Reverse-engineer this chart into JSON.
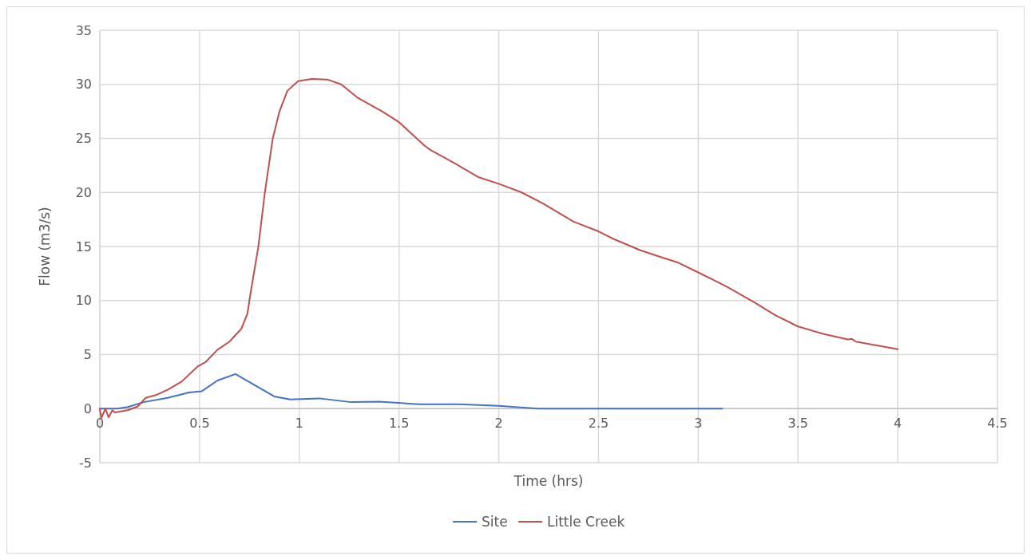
{
  "chart_data": {
    "type": "line",
    "xlabel": "Time (hrs)",
    "ylabel": "Flow (m3/s)",
    "xlim": [
      0,
      4.5
    ],
    "xticks": [
      0,
      0.5,
      1,
      1.5,
      2,
      2.5,
      3,
      3.5,
      4,
      4.5
    ],
    "ylim": [
      -5,
      35
    ],
    "yticks": [
      -5,
      0,
      5,
      10,
      15,
      20,
      25,
      30,
      35
    ],
    "grid": true,
    "legend": "bottom",
    "marker": "none",
    "line_style": "solid",
    "series": [
      {
        "name": "Site",
        "color": "#4472c4",
        "x": [
          0,
          0.087,
          0.14,
          0.22,
          0.34,
          0.447,
          0.51,
          0.59,
          0.68,
          0.77,
          0.874,
          0.954,
          1.1,
          1.26,
          1.4,
          1.6,
          1.8,
          2.0,
          2.2,
          2.5,
          2.8,
          3.12
        ],
        "values": [
          0,
          0,
          0.15,
          0.6,
          1.0,
          1.5,
          1.6,
          2.6,
          3.2,
          2.25,
          1.13,
          0.85,
          0.95,
          0.6,
          0.65,
          0.4,
          0.4,
          0.25,
          0,
          0,
          0,
          0
        ]
      },
      {
        "name": "Little Creek",
        "color": "#c0504d",
        "x": [
          0,
          0.007,
          0.028,
          0.044,
          0.063,
          0.076,
          0.14,
          0.19,
          0.23,
          0.28,
          0.34,
          0.41,
          0.49,
          0.53,
          0.59,
          0.65,
          0.71,
          0.74,
          0.754,
          0.794,
          0.827,
          0.867,
          0.9,
          0.94,
          0.994,
          1.06,
          1.14,
          1.21,
          1.29,
          1.42,
          1.5,
          1.63,
          1.66,
          1.77,
          1.9,
          2.0,
          2.115,
          2.22,
          2.375,
          2.5,
          2.575,
          2.71,
          2.8,
          2.9,
          3.0,
          3.11,
          3.17,
          3.28,
          3.39,
          3.5,
          3.63,
          3.75,
          3.77,
          3.79,
          4.0
        ],
        "values": [
          0,
          -0.9,
          0,
          -0.8,
          -0.15,
          -0.35,
          -0.15,
          0.2,
          1.0,
          1.25,
          1.75,
          2.5,
          3.9,
          4.3,
          5.45,
          6.2,
          7.4,
          8.8,
          10.5,
          14.9,
          19.95,
          25.0,
          27.45,
          29.4,
          30.3,
          30.5,
          30.45,
          30.0,
          28.8,
          27.45,
          26.5,
          24.3,
          23.9,
          22.8,
          21.4,
          20.8,
          20.0,
          19.0,
          17.3,
          16.4,
          15.7,
          14.65,
          14.1,
          13.5,
          12.6,
          11.6,
          11.0,
          9.85,
          8.6,
          7.6,
          6.9,
          6.4,
          6.45,
          6.2,
          5.5
        ]
      }
    ]
  }
}
